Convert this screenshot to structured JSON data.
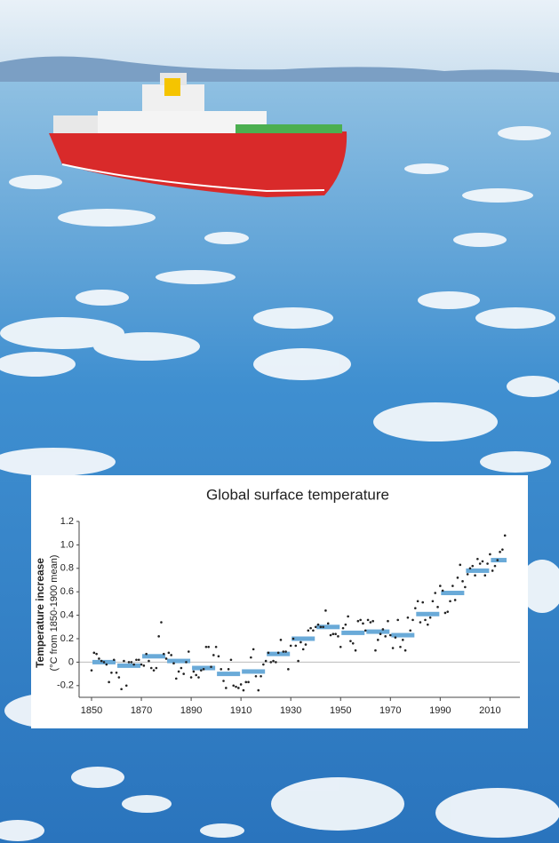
{
  "chart_data": {
    "type": "scatter",
    "title": "Global surface temperature",
    "y_label": [
      "Temperature increase",
      "(°C from 1850-1900 mean)"
    ],
    "x": [
      1850,
      1851,
      1852,
      1853,
      1854,
      1855,
      1856,
      1857,
      1858,
      1859,
      1860,
      1861,
      1862,
      1863,
      1864,
      1865,
      1866,
      1867,
      1868,
      1869,
      1870,
      1871,
      1872,
      1873,
      1874,
      1875,
      1876,
      1877,
      1878,
      1879,
      1880,
      1881,
      1882,
      1883,
      1884,
      1885,
      1886,
      1887,
      1888,
      1889,
      1890,
      1891,
      1892,
      1893,
      1894,
      1895,
      1896,
      1897,
      1898,
      1899,
      1900,
      1901,
      1902,
      1903,
      1904,
      1905,
      1906,
      1907,
      1908,
      1909,
      1910,
      1911,
      1912,
      1913,
      1914,
      1915,
      1916,
      1917,
      1918,
      1919,
      1920,
      1921,
      1922,
      1923,
      1924,
      1925,
      1926,
      1927,
      1928,
      1929,
      1930,
      1931,
      1932,
      1933,
      1934,
      1935,
      1936,
      1937,
      1938,
      1939,
      1940,
      1941,
      1942,
      1943,
      1944,
      1945,
      1946,
      1947,
      1948,
      1949,
      1950,
      1951,
      1952,
      1953,
      1954,
      1955,
      1956,
      1957,
      1958,
      1959,
      1960,
      1961,
      1962,
      1963,
      1964,
      1965,
      1966,
      1967,
      1968,
      1969,
      1970,
      1971,
      1972,
      1973,
      1974,
      1975,
      1976,
      1977,
      1978,
      1979,
      1980,
      1981,
      1982,
      1983,
      1984,
      1985,
      1986,
      1987,
      1988,
      1989,
      1990,
      1991,
      1992,
      1993,
      1994,
      1995,
      1996,
      1997,
      1998,
      1999,
      2000,
      2001,
      2002,
      2003,
      2004,
      2005,
      2006,
      2007,
      2008,
      2009,
      2010,
      2011,
      2012,
      2013,
      2014,
      2015,
      2016
    ],
    "values": [
      -0.07,
      0.08,
      0.07,
      0.03,
      0.01,
      0,
      -0.02,
      -0.17,
      -0.09,
      0.02,
      -0.09,
      -0.13,
      -0.23,
      0.01,
      -0.2,
      0,
      0,
      -0.02,
      0.02,
      0.02,
      -0.02,
      -0.03,
      0.07,
      0.01,
      -0.05,
      -0.07,
      -0.05,
      0.22,
      0.34,
      0.07,
      0.03,
      0.08,
      0.06,
      -0.01,
      -0.14,
      -0.08,
      -0.05,
      -0.1,
      0,
      0.09,
      -0.13,
      -0.08,
      -0.11,
      -0.13,
      -0.07,
      -0.06,
      0.13,
      0.13,
      -0.04,
      0.06,
      0.13,
      0.05,
      -0.06,
      -0.16,
      -0.22,
      -0.06,
      0.02,
      -0.2,
      -0.21,
      -0.22,
      -0.19,
      -0.24,
      -0.17,
      -0.17,
      0.04,
      0.11,
      -0.12,
      -0.24,
      -0.12,
      -0.02,
      0.01,
      0.08,
      0,
      0.01,
      0,
      0.08,
      0.19,
      0.09,
      0.09,
      -0.06,
      0.14,
      0.2,
      0.14,
      0.01,
      0.17,
      0.11,
      0.15,
      0.27,
      0.29,
      0.27,
      0.3,
      0.32,
      0.3,
      0.3,
      0.44,
      0.33,
      0.23,
      0.24,
      0.24,
      0.22,
      0.13,
      0.29,
      0.32,
      0.39,
      0.18,
      0.16,
      0.1,
      0.35,
      0.36,
      0.33,
      0.27,
      0.36,
      0.34,
      0.35,
      0.1,
      0.19,
      0.24,
      0.28,
      0.22,
      0.35,
      0.23,
      0.12,
      0.21,
      0.36,
      0.13,
      0.19,
      0.1,
      0.38,
      0.27,
      0.36,
      0.46,
      0.52,
      0.34,
      0.51,
      0.36,
      0.32,
      0.38,
      0.52,
      0.59,
      0.47,
      0.65,
      0.61,
      0.42,
      0.43,
      0.52,
      0.65,
      0.53,
      0.72,
      0.83,
      0.69,
      0.64,
      0.75,
      0.8,
      0.82,
      0.74,
      0.88,
      0.84,
      0.86,
      0.74,
      0.84,
      0.92,
      0.78,
      0.82,
      0.87,
      0.94,
      0.96,
      1.08
    ],
    "color": "#222222",
    "decade_bins": [
      1850,
      1860,
      1870,
      1880,
      1890,
      1900,
      1910,
      1920,
      1930,
      1940,
      1950,
      1960,
      1970,
      1980,
      1990,
      2000,
      2010,
      2017
    ],
    "decade_values": [
      0,
      -0.03,
      0.05,
      0.01,
      -0.05,
      -0.1,
      -0.08,
      0.07,
      0.2,
      0.3,
      0.25,
      0.26,
      0.23,
      0.41,
      0.59,
      0.78,
      0.87
    ],
    "decade_color": "#6aaad8",
    "xlim": [
      1845,
      2022
    ],
    "xticks": [
      1850,
      1870,
      1890,
      1910,
      1930,
      1950,
      1970,
      1990,
      2010
    ],
    "ylim": [
      -0.3,
      1.2
    ],
    "yticks": [
      -0.2,
      0,
      0.2,
      0.4,
      0.6,
      0.8,
      {
        "value": 1,
        "label": "1.0"
      },
      1.2
    ]
  }
}
